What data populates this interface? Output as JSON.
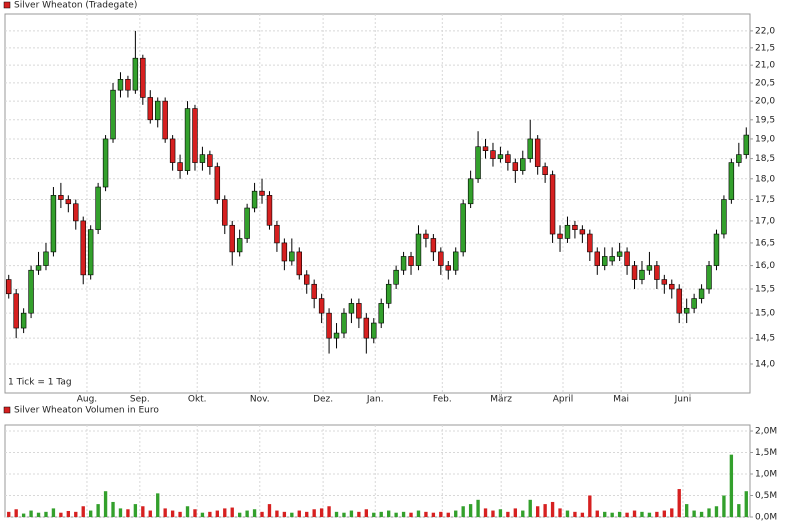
{
  "chart_data": [
    {
      "type": "candlestick",
      "log": true,
      "grid": true,
      "annotation": "1 Tick = 1 Tag",
      "up_color": "#33a02c",
      "down_color": "#d62020",
      "xlim": [
        -0.5,
        99.5
      ],
      "xticks": [
        {
          "value": 10.5,
          "label": "Aug."
        },
        {
          "value": 17.6,
          "label": "Sep."
        },
        {
          "value": 25.3,
          "label": "Okt."
        },
        {
          "value": 33.7,
          "label": "Nov."
        },
        {
          "value": 42.2,
          "label": "Dez."
        },
        {
          "value": 49.2,
          "label": "Jan."
        },
        {
          "value": 58.2,
          "label": "Feb."
        },
        {
          "value": 66.1,
          "label": "März"
        },
        {
          "value": 74.4,
          "label": "April"
        },
        {
          "value": 82.2,
          "label": "Mai"
        },
        {
          "value": 90.5,
          "label": "Juni"
        }
      ],
      "ylim": [
        13.46,
        22.51
      ],
      "yticks": [
        {
          "value": 14,
          "label": "14,0"
        },
        {
          "value": 14.5,
          "label": "14,5"
        },
        {
          "value": 15,
          "label": "15,0"
        },
        {
          "value": 15.5,
          "label": "15,5"
        },
        {
          "value": 16,
          "label": "16,0"
        },
        {
          "value": 16.5,
          "label": "16,5"
        },
        {
          "value": 17,
          "label": "17,0"
        },
        {
          "value": 17.5,
          "label": "17,5"
        },
        {
          "value": 18,
          "label": "18,0"
        },
        {
          "value": 18.5,
          "label": "18,5"
        },
        {
          "value": 19,
          "label": "19,0"
        },
        {
          "value": 19.5,
          "label": "19,5"
        },
        {
          "value": 20,
          "label": "20,0"
        },
        {
          "value": 20.5,
          "label": "20,5"
        },
        {
          "value": 21,
          "label": "21,0"
        },
        {
          "value": 21.5,
          "label": "21,5"
        },
        {
          "value": 22,
          "label": "22,0"
        }
      ],
      "series": [
        {
          "name": "Silver Wheaton (Tradegate)",
          "color": "#d62020",
          "open": [
            15.7,
            15.4,
            14.7,
            15.0,
            15.9,
            16.0,
            16.3,
            17.6,
            17.5,
            17.4,
            17.0,
            15.8,
            16.8,
            17.8,
            19.0,
            20.3,
            20.6,
            20.3,
            21.2,
            20.1,
            19.5,
            20.0,
            19.0,
            18.4,
            18.2,
            19.8,
            18.4,
            18.6,
            18.3,
            17.5,
            16.9,
            16.3,
            16.6,
            17.3,
            17.7,
            17.6,
            16.9,
            16.5,
            16.1,
            16.3,
            15.8,
            15.6,
            15.3,
            15.0,
            14.5,
            14.6,
            15.0,
            15.2,
            14.9,
            14.5,
            14.8,
            15.2,
            15.6,
            15.9,
            16.2,
            16.0,
            16.7,
            16.6,
            16.3,
            16.0,
            15.9,
            16.3,
            17.4,
            18.0,
            18.8,
            18.7,
            18.5,
            18.6,
            18.4,
            18.2,
            18.5,
            19.0,
            18.3,
            18.1,
            16.7,
            16.6,
            16.9,
            16.8,
            16.7,
            16.3,
            16.0,
            16.1,
            16.2,
            16.3,
            16.0,
            15.7,
            15.9,
            16.0,
            15.7,
            15.6,
            15.5,
            15.0,
            15.1,
            15.3,
            15.5,
            16.0,
            16.7,
            17.5,
            18.4,
            18.6
          ],
          "high": [
            15.8,
            15.5,
            15.1,
            16.0,
            16.3,
            16.5,
            17.8,
            17.9,
            17.6,
            17.5,
            17.1,
            16.9,
            17.9,
            19.1,
            20.5,
            20.8,
            20.7,
            22.0,
            21.3,
            20.3,
            20.1,
            20.1,
            19.1,
            18.6,
            20.0,
            19.9,
            18.8,
            18.7,
            18.4,
            17.6,
            17.0,
            16.8,
            17.4,
            17.9,
            18.0,
            17.7,
            17.0,
            16.6,
            16.6,
            16.4,
            15.9,
            15.7,
            15.4,
            15.1,
            14.8,
            15.1,
            15.3,
            15.3,
            15.0,
            14.9,
            15.3,
            15.7,
            16.0,
            16.3,
            16.3,
            16.9,
            16.8,
            16.7,
            16.4,
            16.1,
            16.4,
            17.5,
            18.2,
            19.2,
            19.0,
            18.9,
            18.8,
            18.7,
            18.5,
            18.7,
            19.5,
            19.1,
            18.4,
            18.2,
            16.9,
            17.1,
            17.0,
            16.9,
            16.8,
            16.4,
            16.4,
            16.4,
            16.5,
            16.4,
            16.1,
            16.1,
            16.3,
            16.1,
            15.8,
            15.7,
            15.6,
            15.3,
            15.4,
            15.6,
            16.1,
            16.8,
            17.6,
            18.5,
            18.9,
            19.3
          ],
          "low": [
            15.3,
            14.5,
            14.6,
            14.9,
            15.8,
            15.9,
            16.2,
            17.3,
            17.2,
            16.8,
            15.6,
            15.7,
            16.7,
            17.7,
            18.9,
            20.1,
            20.1,
            20.2,
            19.9,
            19.4,
            19.3,
            18.9,
            18.2,
            18.0,
            18.1,
            18.2,
            18.2,
            18.1,
            17.4,
            16.7,
            16.0,
            16.2,
            16.5,
            17.2,
            17.4,
            16.8,
            16.3,
            15.9,
            16.0,
            15.7,
            15.4,
            15.1,
            14.8,
            14.2,
            14.3,
            14.5,
            14.8,
            14.7,
            14.2,
            14.4,
            14.7,
            15.1,
            15.5,
            15.8,
            15.8,
            15.9,
            16.4,
            16.1,
            15.8,
            15.7,
            15.8,
            16.2,
            17.3,
            17.9,
            18.5,
            18.3,
            18.4,
            18.2,
            17.9,
            18.1,
            18.4,
            18.1,
            17.9,
            16.5,
            16.3,
            16.5,
            16.6,
            16.5,
            16.1,
            15.8,
            15.9,
            16.0,
            16.1,
            15.8,
            15.5,
            15.6,
            15.8,
            15.5,
            15.4,
            15.3,
            14.8,
            14.8,
            15.0,
            15.2,
            15.4,
            15.9,
            16.6,
            17.4,
            18.3,
            18.5
          ],
          "close": [
            15.4,
            14.7,
            15.0,
            15.9,
            16.0,
            16.3,
            17.6,
            17.5,
            17.4,
            17.0,
            15.8,
            16.8,
            17.8,
            19.0,
            20.3,
            20.6,
            20.3,
            21.2,
            20.1,
            19.5,
            20.0,
            19.0,
            18.4,
            18.2,
            19.8,
            18.4,
            18.6,
            18.3,
            17.5,
            16.9,
            16.3,
            16.6,
            17.3,
            17.7,
            17.6,
            16.9,
            16.5,
            16.1,
            16.3,
            15.8,
            15.6,
            15.3,
            15.0,
            14.5,
            14.6,
            15.0,
            15.2,
            14.9,
            14.5,
            14.8,
            15.2,
            15.6,
            15.9,
            16.2,
            16.0,
            16.7,
            16.6,
            16.3,
            16.0,
            15.9,
            16.3,
            17.4,
            18.0,
            18.8,
            18.7,
            18.5,
            18.6,
            18.4,
            18.2,
            18.5,
            19.0,
            18.3,
            18.1,
            16.7,
            16.6,
            16.9,
            16.8,
            16.7,
            16.3,
            16.0,
            16.2,
            16.2,
            16.3,
            16.0,
            15.7,
            15.9,
            16.0,
            15.7,
            15.6,
            15.5,
            15.0,
            15.1,
            15.3,
            15.5,
            16.0,
            16.7,
            17.5,
            18.4,
            18.6,
            19.1
          ]
        }
      ]
    },
    {
      "type": "bar",
      "grid": true,
      "ylim": [
        0,
        2.14
      ],
      "yticks": [
        {
          "value": 0,
          "label": "0,0M"
        },
        {
          "value": 0.5,
          "label": "0,5M"
        },
        {
          "value": 1,
          "label": "1,0M"
        },
        {
          "value": 1.5,
          "label": "1,5M"
        },
        {
          "value": 2,
          "label": "2,0M"
        }
      ],
      "series": [
        {
          "name": "Silver Wheaton Volumen in Euro",
          "color": "#d62020",
          "values": [
            0.12,
            0.18,
            0.08,
            0.15,
            0.1,
            0.12,
            0.2,
            0.1,
            0.14,
            0.12,
            0.25,
            0.15,
            0.3,
            0.6,
            0.35,
            0.2,
            0.18,
            0.3,
            0.25,
            0.15,
            0.55,
            0.2,
            0.15,
            0.12,
            0.25,
            0.18,
            0.1,
            0.12,
            0.15,
            0.2,
            0.22,
            0.1,
            0.15,
            0.18,
            0.12,
            0.3,
            0.15,
            0.12,
            0.1,
            0.15,
            0.12,
            0.18,
            0.2,
            0.25,
            0.12,
            0.1,
            0.15,
            0.12,
            0.18,
            0.1,
            0.12,
            0.15,
            0.1,
            0.12,
            0.1,
            0.15,
            0.12,
            0.1,
            0.12,
            0.1,
            0.15,
            0.25,
            0.3,
            0.4,
            0.2,
            0.15,
            0.18,
            0.12,
            0.2,
            0.15,
            0.4,
            0.25,
            0.3,
            0.35,
            0.2,
            0.15,
            0.12,
            0.1,
            0.5,
            0.15,
            0.12,
            0.1,
            0.12,
            0.1,
            0.15,
            0.12,
            0.1,
            0.12,
            0.15,
            0.2,
            0.65,
            0.3,
            0.15,
            0.12,
            0.2,
            0.25,
            0.5,
            1.45,
            0.3,
            0.6
          ]
        }
      ]
    }
  ]
}
